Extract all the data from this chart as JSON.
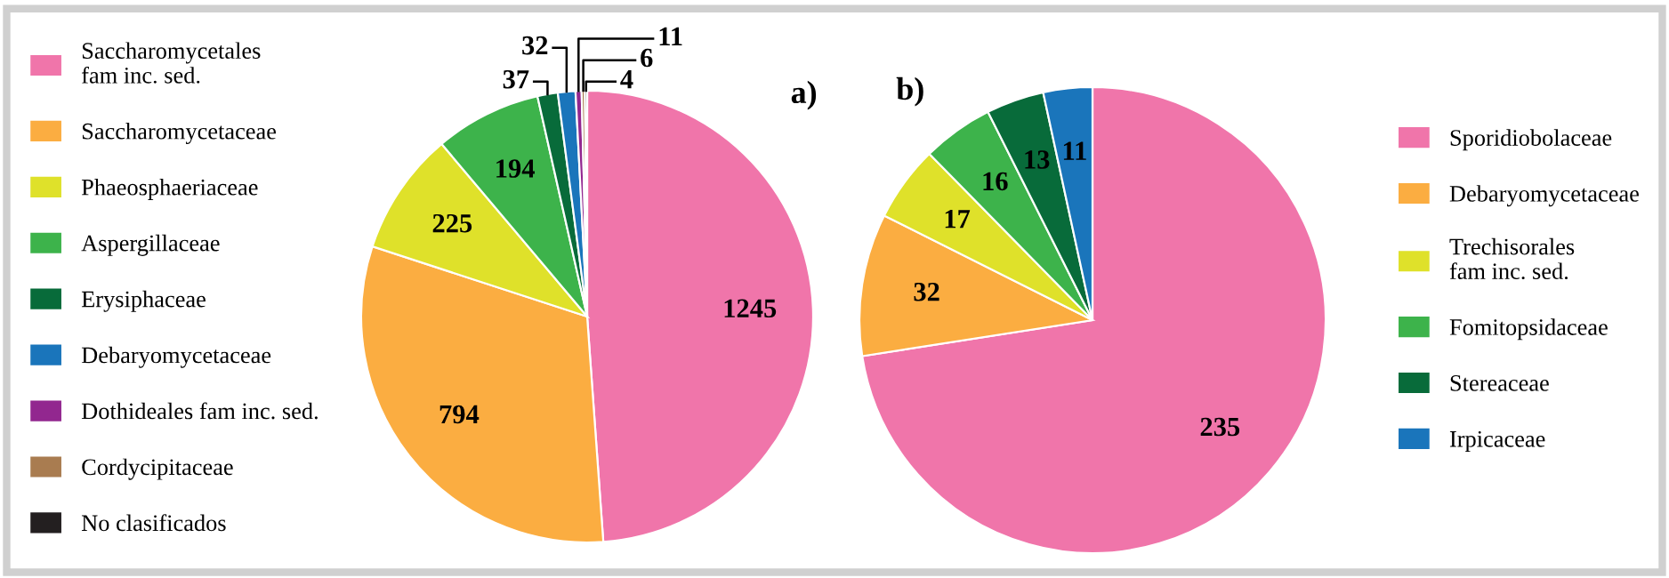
{
  "chart_data": [
    {
      "type": "pie",
      "annotations": [
        "a)"
      ],
      "legend": "left",
      "data_labels": true,
      "categories": [
        "Saccharomycetales\nfam inc. sed.",
        "Saccharomycetaceae",
        "Phaeosphaeriaceae",
        "Aspergillaceae",
        "Erysiphaceae",
        "Debaryomycetaceae",
        "Dothideales fam inc. sed.",
        "Cordycipitaceae",
        "No clasificados"
      ],
      "values": [
        1245,
        794,
        225,
        194,
        37,
        32,
        11,
        6,
        4
      ],
      "colors": [
        "#f075aa",
        "#fbad41",
        "#dfe12a",
        "#3db34b",
        "#086b3a",
        "#1a75bb",
        "#92278f",
        "#a97c50",
        "#231f20"
      ]
    },
    {
      "type": "pie",
      "annotations": [
        "b)"
      ],
      "legend": "right",
      "data_labels": true,
      "categories": [
        "Sporidiobolaceae",
        "Debaryomycetaceae",
        "Trechisorales\nfam inc. sed.",
        "Fomitopsidaceae",
        "Stereaceae",
        "Irpicaceae"
      ],
      "values": [
        235,
        32,
        17,
        16,
        13,
        11
      ],
      "colors": [
        "#f075aa",
        "#fbad41",
        "#dfe12a",
        "#3db34b",
        "#086b3a",
        "#1a75bb"
      ]
    }
  ]
}
